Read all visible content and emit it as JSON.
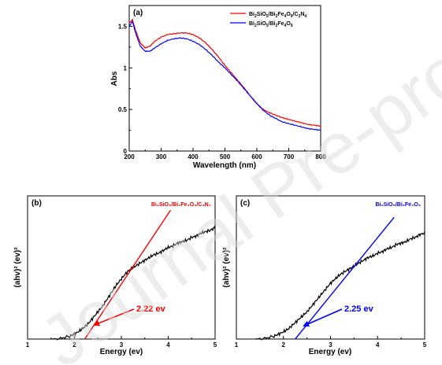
{
  "watermark": {
    "text": "Journal Pre-proof"
  },
  "chart_data": [
    {
      "type": "line",
      "panel_label": "(a)",
      "xlabel": "Wavelength (nm)",
      "ylabel": "Abs",
      "xlim": [
        200,
        800
      ],
      "ylim": [
        0,
        1.75
      ],
      "xticks": [
        200,
        300,
        400,
        500,
        600,
        700,
        800
      ],
      "yticks": [
        0,
        0.5,
        1,
        1.5
      ],
      "ytick_labels": [
        "0",
        "0.5",
        "1",
        "1.5"
      ],
      "legend_position": "top-right",
      "colors": {
        "red": "#ff0000",
        "blue": "#0000ff"
      },
      "series": [
        {
          "name": "Bi2SiO5/Bi2Fe4O9/C3N4",
          "color": "#ff0000",
          "x": [
            200,
            210,
            220,
            235,
            250,
            265,
            280,
            300,
            320,
            340,
            360,
            380,
            400,
            420,
            440,
            460,
            480,
            500,
            520,
            540,
            560,
            580,
            600,
            620,
            640,
            660,
            680,
            700,
            720,
            740,
            760,
            780,
            800
          ],
          "y": [
            1.54,
            1.58,
            1.45,
            1.3,
            1.24,
            1.26,
            1.32,
            1.37,
            1.4,
            1.41,
            1.42,
            1.42,
            1.4,
            1.36,
            1.3,
            1.22,
            1.13,
            1.03,
            0.94,
            0.85,
            0.76,
            0.66,
            0.57,
            0.5,
            0.46,
            0.43,
            0.4,
            0.38,
            0.36,
            0.34,
            0.32,
            0.31,
            0.3
          ]
        },
        {
          "name": "Bi2SiO5/Bi2Fe4O9",
          "color": "#0000ff",
          "x": [
            200,
            210,
            220,
            235,
            250,
            265,
            280,
            300,
            320,
            340,
            360,
            380,
            400,
            420,
            440,
            460,
            480,
            500,
            520,
            540,
            560,
            580,
            600,
            620,
            640,
            660,
            680,
            700,
            720,
            740,
            760,
            780,
            800
          ],
          "y": [
            1.5,
            1.56,
            1.42,
            1.26,
            1.2,
            1.2,
            1.24,
            1.29,
            1.33,
            1.35,
            1.36,
            1.35,
            1.32,
            1.28,
            1.22,
            1.15,
            1.07,
            1.0,
            0.92,
            0.84,
            0.75,
            0.66,
            0.57,
            0.49,
            0.43,
            0.39,
            0.35,
            0.33,
            0.31,
            0.29,
            0.27,
            0.26,
            0.25
          ]
        }
      ],
      "legend": [
        {
          "main": "Bi",
          "parts": [
            [
              "2",
              "SiO"
            ],
            [
              "5",
              "/Bi"
            ],
            [
              "2",
              "Fe"
            ],
            [
              "4",
              "O"
            ],
            [
              "9",
              "/C"
            ],
            [
              "3",
              "N"
            ],
            [
              "4",
              ""
            ]
          ]
        },
        {
          "main": "Bi",
          "parts": [
            [
              "2",
              "SiO"
            ],
            [
              "5",
              "/Bi"
            ],
            [
              "2",
              "Fe"
            ],
            [
              "4",
              "O"
            ],
            [
              "9",
              ""
            ]
          ]
        }
      ]
    },
    {
      "type": "line",
      "panel_label": "(b)",
      "xlabel": "Energy (ev)",
      "ylabel": "(ahv)² (ev)²",
      "xlim": [
        1,
        5
      ],
      "ylim": [
        0,
        1
      ],
      "xticks": [
        1,
        2,
        3,
        4,
        5
      ],
      "legend_text": "Bi₂SiO₅/Bi₂Fe₄O₉/C₃N₄",
      "legend_color": "#ff0000",
      "annotation": "2.22 ev",
      "annotation_color": "#ff0000",
      "band_gap": 2.22,
      "series": [
        {
          "name": "Bi2SiO5/Bi2Fe4O9/C3N4",
          "color": "#000000",
          "x": [
            1.5,
            1.7,
            1.9,
            2.0,
            2.1,
            2.2,
            2.3,
            2.4,
            2.5,
            2.6,
            2.7,
            2.8,
            2.9,
            3.0,
            3.1,
            3.2,
            3.3,
            3.4,
            3.5,
            3.6,
            3.7,
            3.8,
            3.9,
            4.0,
            4.1,
            4.2,
            4.3,
            4.4,
            4.5,
            4.6,
            4.7,
            4.8,
            4.9,
            5.0
          ],
          "y": [
            0.0,
            0.005,
            0.02,
            0.035,
            0.055,
            0.08,
            0.11,
            0.15,
            0.19,
            0.23,
            0.28,
            0.33,
            0.38,
            0.42,
            0.46,
            0.49,
            0.51,
            0.53,
            0.55,
            0.57,
            0.59,
            0.6,
            0.62,
            0.64,
            0.65,
            0.67,
            0.68,
            0.69,
            0.71,
            0.72,
            0.74,
            0.75,
            0.76,
            0.78
          ]
        },
        {
          "name": "tangent",
          "color": "#ff0000",
          "x": [
            2.22,
            4.05
          ],
          "y": [
            0.0,
            0.9
          ]
        }
      ]
    },
    {
      "type": "line",
      "panel_label": "(c)",
      "xlabel": "Energy (ev)",
      "ylabel": "(ahv)² (ev)²",
      "xlim": [
        1,
        5
      ],
      "ylim": [
        0,
        1
      ],
      "xticks": [
        1,
        2,
        3,
        4,
        5
      ],
      "legend_text": "Bi₂SiO₅/Bi₂Fe₄O₉",
      "legend_color": "#0000ff",
      "annotation": "2.25 ev",
      "annotation_color": "#0000ff",
      "band_gap": 2.25,
      "series": [
        {
          "name": "Bi2SiO5/Bi2Fe4O9",
          "color": "#000000",
          "x": [
            1.4,
            1.6,
            1.8,
            1.9,
            2.0,
            2.1,
            2.2,
            2.3,
            2.4,
            2.5,
            2.6,
            2.7,
            2.8,
            2.9,
            3.0,
            3.1,
            3.2,
            3.3,
            3.4,
            3.5,
            3.6,
            3.7,
            3.8,
            3.9,
            4.0,
            4.1,
            4.2,
            4.3,
            4.4,
            4.5,
            4.6,
            4.7,
            4.8,
            4.9,
            5.0
          ],
          "y": [
            0.0,
            0.005,
            0.02,
            0.035,
            0.05,
            0.07,
            0.1,
            0.13,
            0.16,
            0.19,
            0.23,
            0.27,
            0.31,
            0.35,
            0.39,
            0.42,
            0.45,
            0.47,
            0.49,
            0.51,
            0.53,
            0.55,
            0.57,
            0.58,
            0.6,
            0.61,
            0.63,
            0.64,
            0.66,
            0.67,
            0.68,
            0.7,
            0.71,
            0.73,
            0.74
          ]
        },
        {
          "name": "tangent",
          "color": "#0000ff",
          "x": [
            2.25,
            4.35
          ],
          "y": [
            0.0,
            0.85
          ]
        }
      ]
    }
  ]
}
